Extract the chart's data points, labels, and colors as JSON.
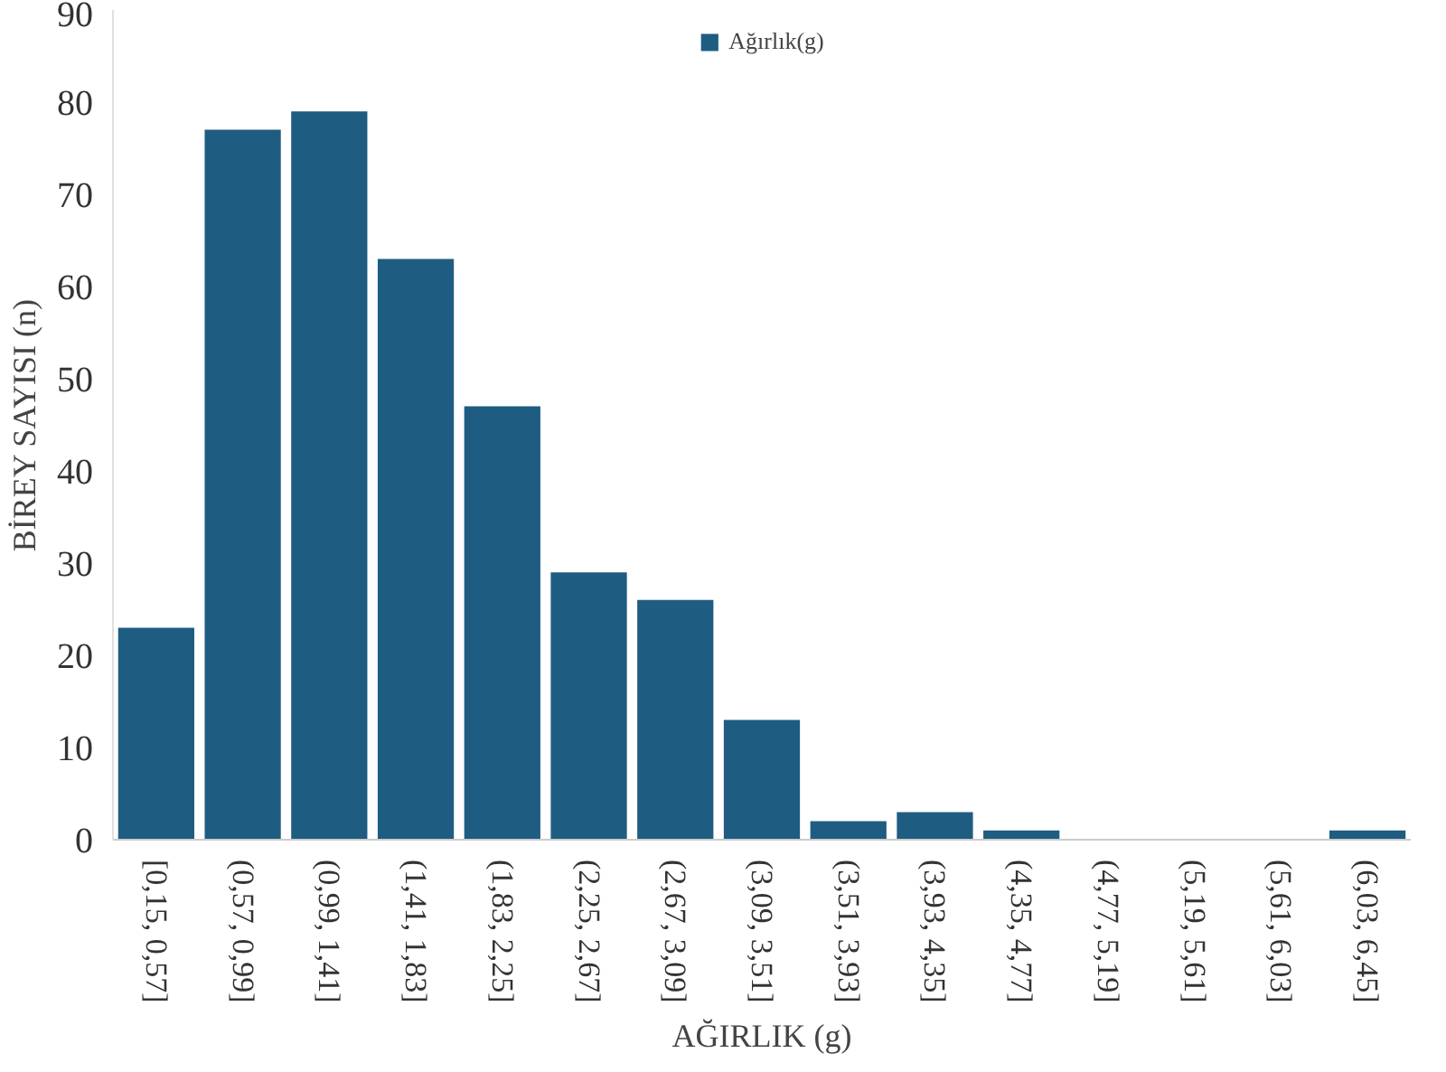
{
  "chart_data": {
    "type": "bar",
    "xlabel": "AĞIRLIK (g)",
    "ylabel": "BİREY SAYISI (n)",
    "categories": [
      "[0,15, 0,57]",
      "(0,57, 0,99]",
      "(0,99, 1,41]",
      "(1,41, 1,83]",
      "(1,83, 2,25]",
      "(2,25, 2,67]",
      "(2,67, 3,09]",
      "(3,09, 3,51]",
      "(3,51, 3,93]",
      "(3,93, 4,35]",
      "(4,35, 4,77]",
      "(4,77, 5,19]",
      "(5,19, 5,61]",
      "(5,61, 6,03]",
      "(6,03, 6,45]"
    ],
    "series": [
      {
        "name": "Ağırlık(g)",
        "color": "#1f5c82",
        "values": [
          23,
          77,
          79,
          63,
          47,
          29,
          26,
          13,
          2,
          3,
          1,
          0,
          0,
          0,
          1
        ]
      }
    ],
    "ylim": [
      0,
      90
    ],
    "yticks": [
      0,
      10,
      20,
      30,
      40,
      50,
      60,
      70,
      80,
      90
    ],
    "grid": false,
    "legend": "top"
  }
}
